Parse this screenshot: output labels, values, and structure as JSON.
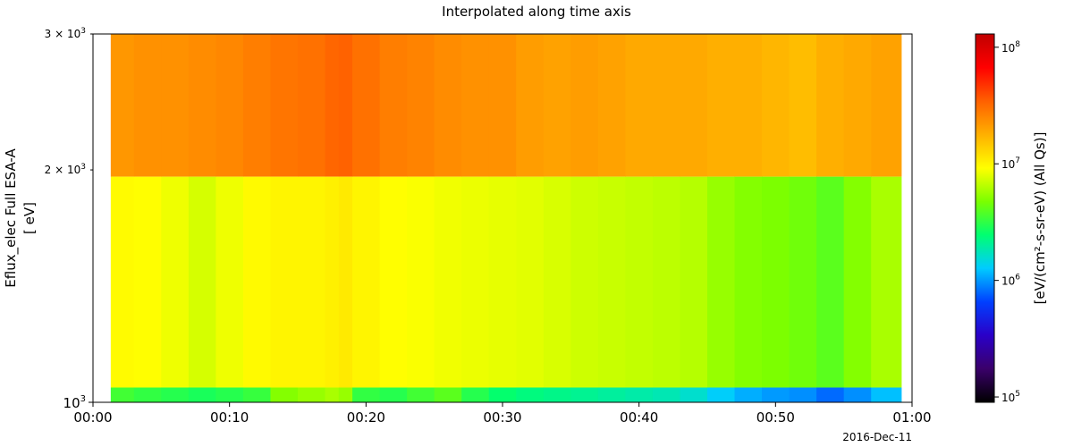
{
  "chart_data": {
    "type": "heatmap",
    "title": "Interpolated along time axis",
    "ylabel_line1": "Eflux_elec Full ESA-A",
    "ylabel_line2": "[ eV]",
    "colorbar_label": "[eV/(cm²-s-sr-eV) (All Qs)]",
    "date_label": "2016-Dec-11",
    "x_ticks": [
      "00:00",
      "00:10",
      "00:20",
      "00:30",
      "00:40",
      "00:50",
      "01:00"
    ],
    "x_range_minutes": [
      0,
      60
    ],
    "data_x_range_minutes": [
      1.3,
      59.2
    ],
    "y_scale": "log",
    "y_range_eV": [
      1000,
      3000
    ],
    "y_ticks": [
      {
        "value": 1000,
        "mant": "",
        "exp": "3",
        "major": true
      },
      {
        "value": 2000,
        "mant": "2",
        "exp": "3",
        "major": false
      },
      {
        "value": 3000,
        "mant": "3",
        "exp": "3",
        "major": false
      }
    ],
    "colorbar_scale": "log",
    "colorbar_range": [
      90000,
      130000000
    ],
    "colorbar_ticks": [
      {
        "value": 100000,
        "exp": "5"
      },
      {
        "value": 1000000,
        "exp": "6"
      },
      {
        "value": 10000000,
        "exp": "7"
      },
      {
        "value": 100000000,
        "exp": "8"
      }
    ],
    "colormap": [
      "#000000",
      "#3a006a",
      "#2a00c8",
      "#0040ff",
      "#00ccff",
      "#00ff70",
      "#7aff00",
      "#ffff00",
      "#ffb000",
      "#ff6000",
      "#ff0000",
      "#c00000"
    ],
    "energy_bins": [
      {
        "low_eV": 1960,
        "high_eV": 3000
      },
      {
        "low_eV": 1045,
        "high_eV": 1960
      },
      {
        "low_eV": 1000,
        "high_eV": 1045
      }
    ],
    "time_minutes": [
      1.3,
      3,
      5,
      7,
      9,
      11,
      13,
      15,
      17,
      18,
      19,
      21,
      23,
      25,
      27,
      29,
      31,
      33,
      35,
      37,
      39,
      41,
      43,
      45,
      47,
      49,
      51,
      53,
      55,
      57,
      59.2
    ],
    "flux_top_bin": [
      22000000.0,
      23000000.0,
      23000000.0,
      24000000.0,
      25000000.0,
      27000000.0,
      29000000.0,
      30000000.0,
      33000000.0,
      34000000.0,
      30000000.0,
      27000000.0,
      26000000.0,
      24000000.0,
      23000000.0,
      23000000.0,
      21000000.0,
      20000000.0,
      21000000.0,
      20000000.0,
      19000000.0,
      19000000.0,
      19000000.0,
      18000000.0,
      18000000.0,
      17000000.0,
      16000000.0,
      18000000.0,
      19000000.0,
      20000000.0,
      20000000.0
    ],
    "flux_mid_bin": [
      9500000.0,
      9300000.0,
      8500000.0,
      7500000.0,
      8500000.0,
      9600000.0,
      10000000.0,
      10000000.0,
      10500000.0,
      11000000.0,
      10000000.0,
      9300000.0,
      9000000.0,
      8600000.0,
      8400000.0,
      8200000.0,
      8000000.0,
      7600000.0,
      7200000.0,
      7000000.0,
      6800000.0,
      6600000.0,
      6400000.0,
      5500000.0,
      5000000.0,
      4800000.0,
      4500000.0,
      4000000.0,
      5000000.0,
      6000000.0,
      6300000.0
    ],
    "flux_low_bin": [
      3500000.0,
      3200000.0,
      3000000.0,
      2800000.0,
      3000000.0,
      3300000.0,
      5000000.0,
      5500000.0,
      6000000.0,
      5500000.0,
      3200000.0,
      3000000.0,
      3500000.0,
      4000000.0,
      3000000.0,
      2500000.0,
      2300000.0,
      2200000.0,
      2100000.0,
      2000000.0,
      1900000.0,
      1800000.0,
      1600000.0,
      1300000.0,
      1100000.0,
      1000000.0,
      950000.0,
      800000.0,
      950000.0,
      1200000.0,
      1400000.0
    ]
  }
}
